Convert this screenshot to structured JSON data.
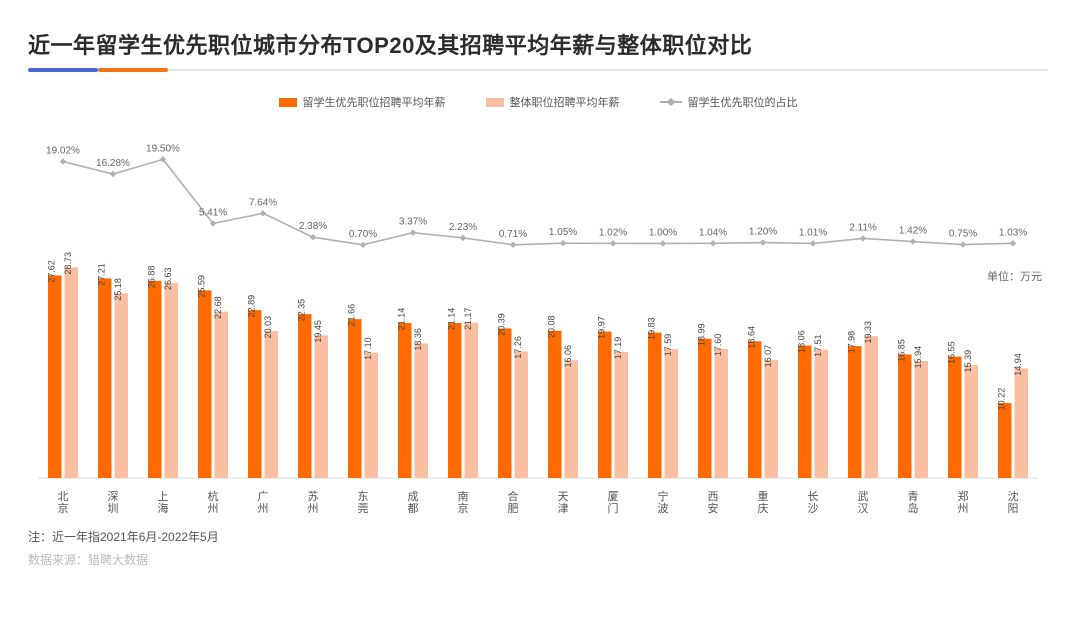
{
  "header": {
    "title": "近一年留学生优先职位城市分布TOP20及其招聘平均年薪与整体职位对比"
  },
  "legend": {
    "series_a": {
      "label": "留学生优先职位招聘平均年薪",
      "color": "#ff6a00"
    },
    "series_b": {
      "label": "整体职位招聘平均年薪",
      "color": "#f9bfa0"
    },
    "series_line": {
      "label": "留学生优先职位的占比",
      "color": "#b0b0b0"
    }
  },
  "chart": {
    "type": "grouped-bar+line",
    "unit_label": "单位：万元",
    "categories": [
      "北京",
      "深圳",
      "上海",
      "杭州",
      "广州",
      "苏州",
      "东莞",
      "成都",
      "南京",
      "合肥",
      "天津",
      "厦门",
      "宁波",
      "西安",
      "重庆",
      "长沙",
      "武汉",
      "青岛",
      "郑州",
      "沈阳"
    ],
    "series_a_values": [
      27.62,
      27.21,
      26.88,
      25.59,
      22.89,
      22.35,
      21.66,
      21.14,
      21.14,
      20.39,
      20.08,
      19.97,
      19.83,
      18.99,
      18.64,
      18.06,
      17.98,
      16.85,
      16.55,
      10.22
    ],
    "series_b_values": [
      28.73,
      25.18,
      26.63,
      22.68,
      20.03,
      19.45,
      17.1,
      18.36,
      21.17,
      17.26,
      16.06,
      17.19,
      17.59,
      17.6,
      16.07,
      17.51,
      19.33,
      15.94,
      15.39,
      14.94
    ],
    "line_values_pct": [
      19.02,
      16.28,
      19.5,
      5.41,
      7.64,
      2.38,
      0.7,
      3.37,
      2.23,
      0.71,
      1.05,
      1.02,
      1.0,
      1.04,
      1.2,
      1.01,
      2.11,
      1.42,
      0.75,
      1.03
    ],
    "bar_y_max": 30,
    "line_y_max": 22,
    "bar_color_a": "#ff6a00",
    "bar_color_b": "#f9bfa0",
    "line_color": "#b0b0b0",
    "line_marker": "diamond",
    "label_fontsize": 9,
    "category_fontsize": 11,
    "bar_group_width_ratio": 0.6,
    "bar_gap_ratio": 0.1,
    "background_color": "#ffffff",
    "axis_color": "#dddddd"
  },
  "footnotes": {
    "note1": "注：近一年指2021年6月-2022年5月",
    "note2": "数据来源：猎聘大数据"
  }
}
